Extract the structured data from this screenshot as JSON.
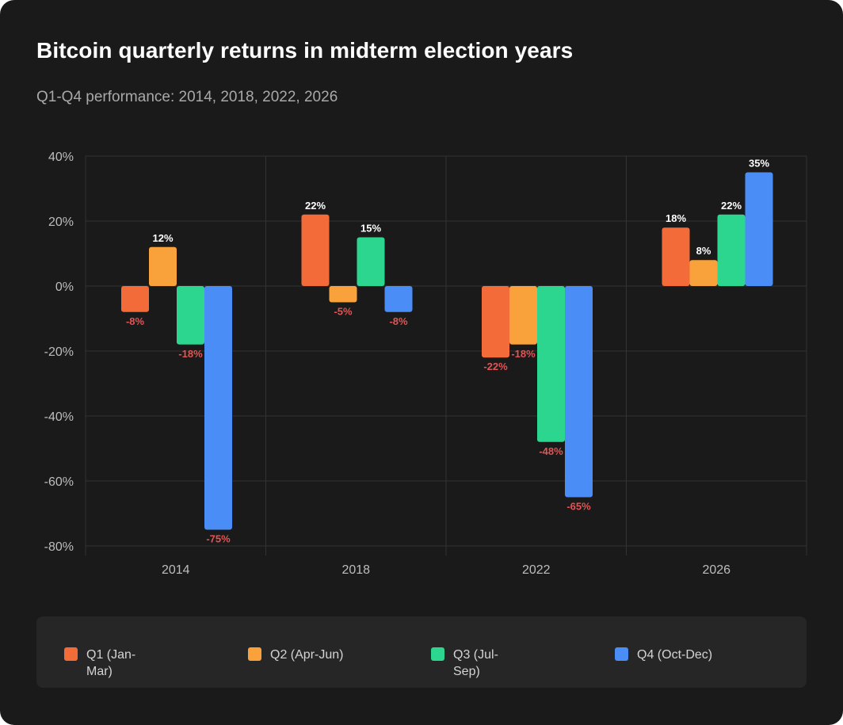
{
  "title": "Bitcoin quarterly returns in midterm election years",
  "subtitle": "Q1-Q4 performance: 2014, 2018, 2022, 2026",
  "colors": {
    "background": "#1a1a1a",
    "grid": "#333333",
    "positive_label": "#ffffff",
    "negative_label": "#e05555"
  },
  "chart_data": {
    "type": "bar",
    "categories": [
      "2014",
      "2018",
      "2022",
      "2026"
    ],
    "series": [
      {
        "name": "Q1 (Jan-Mar)",
        "color": "#f26b38",
        "values": [
          -8,
          22,
          -22,
          18
        ],
        "labels": [
          "-8%",
          "22%",
          "-22%",
          "18%"
        ]
      },
      {
        "name": "Q2 (Apr-Jun)",
        "color": "#f9a23b",
        "values": [
          12,
          -5,
          -18,
          8
        ],
        "labels": [
          "12%",
          "-5%",
          "-18%",
          "8%"
        ]
      },
      {
        "name": "Q3 (Jul-Sep)",
        "color": "#2dd68f",
        "values": [
          -18,
          15,
          -48,
          22
        ],
        "labels": [
          "-18%",
          "15%",
          "-48%",
          "22%"
        ]
      },
      {
        "name": "Q4 (Oct-Dec)",
        "color": "#4a8df7",
        "values": [
          -75,
          -8,
          -65,
          35
        ],
        "labels": [
          "-75%",
          "-8%",
          "-65%",
          "35%"
        ]
      }
    ],
    "ylim": [
      -80,
      40
    ],
    "yticks": [
      40,
      20,
      0,
      -20,
      -40,
      -60,
      -80
    ],
    "ytick_labels": [
      "40%",
      "20%",
      "0%",
      "-20%",
      "-40%",
      "-60%",
      "-80%"
    ],
    "grid": true,
    "legend_position": "bottom"
  },
  "legend": {
    "items": [
      {
        "label": "Q1 (Jan-\nMar)",
        "color": "#f26b38"
      },
      {
        "label": "Q2 (Apr-Jun)",
        "color": "#f9a23b"
      },
      {
        "label": "Q3 (Jul-\nSep)",
        "color": "#2dd68f"
      },
      {
        "label": "Q4 (Oct-Dec)",
        "color": "#4a8df7"
      }
    ]
  }
}
